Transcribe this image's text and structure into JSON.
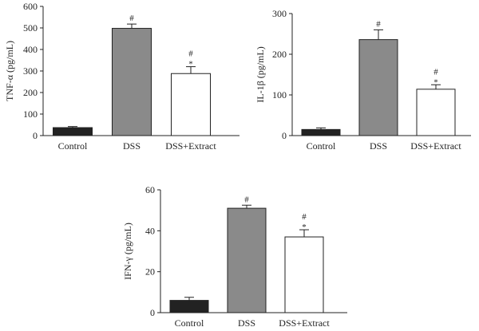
{
  "chart_data": [
    {
      "type": "bar",
      "ylabel": "TNF-α (pg/mL)",
      "categories": [
        "Control",
        "DSS",
        "DSS+Extract"
      ],
      "values": [
        37,
        498,
        288
      ],
      "errors": [
        5,
        20,
        32
      ],
      "annotations": [
        [],
        [
          "#"
        ],
        [
          "#",
          "*"
        ]
      ],
      "bar_colors": [
        "#222222",
        "#8a8a8a",
        "#ffffff"
      ],
      "ylim": [
        0,
        600
      ],
      "yticks": [
        0,
        100,
        200,
        300,
        400,
        500,
        600
      ]
    },
    {
      "type": "bar",
      "ylabel": "IL-1β (pg/mL)",
      "categories": [
        "Control",
        "DSS",
        "DSS+Extract"
      ],
      "values": [
        15,
        236,
        114
      ],
      "errors": [
        4,
        24,
        11
      ],
      "annotations": [
        [],
        [
          "#"
        ],
        [
          "#",
          "*"
        ]
      ],
      "bar_colors": [
        "#222222",
        "#8a8a8a",
        "#ffffff"
      ],
      "ylim": [
        0,
        300
      ],
      "yticks": [
        0,
        100,
        200,
        300
      ]
    },
    {
      "type": "bar",
      "ylabel": "IFN-γ (pg/mL)",
      "categories": [
        "Control",
        "DSS",
        "DSS+Extract"
      ],
      "values": [
        6,
        51,
        37
      ],
      "errors": [
        1.5,
        1.5,
        3.5
      ],
      "annotations": [
        [],
        [
          "#"
        ],
        [
          "#",
          "*"
        ]
      ],
      "bar_colors": [
        "#222222",
        "#8a8a8a",
        "#ffffff"
      ],
      "ylim": [
        0,
        60
      ],
      "yticks": [
        0,
        20,
        40,
        60
      ]
    }
  ]
}
